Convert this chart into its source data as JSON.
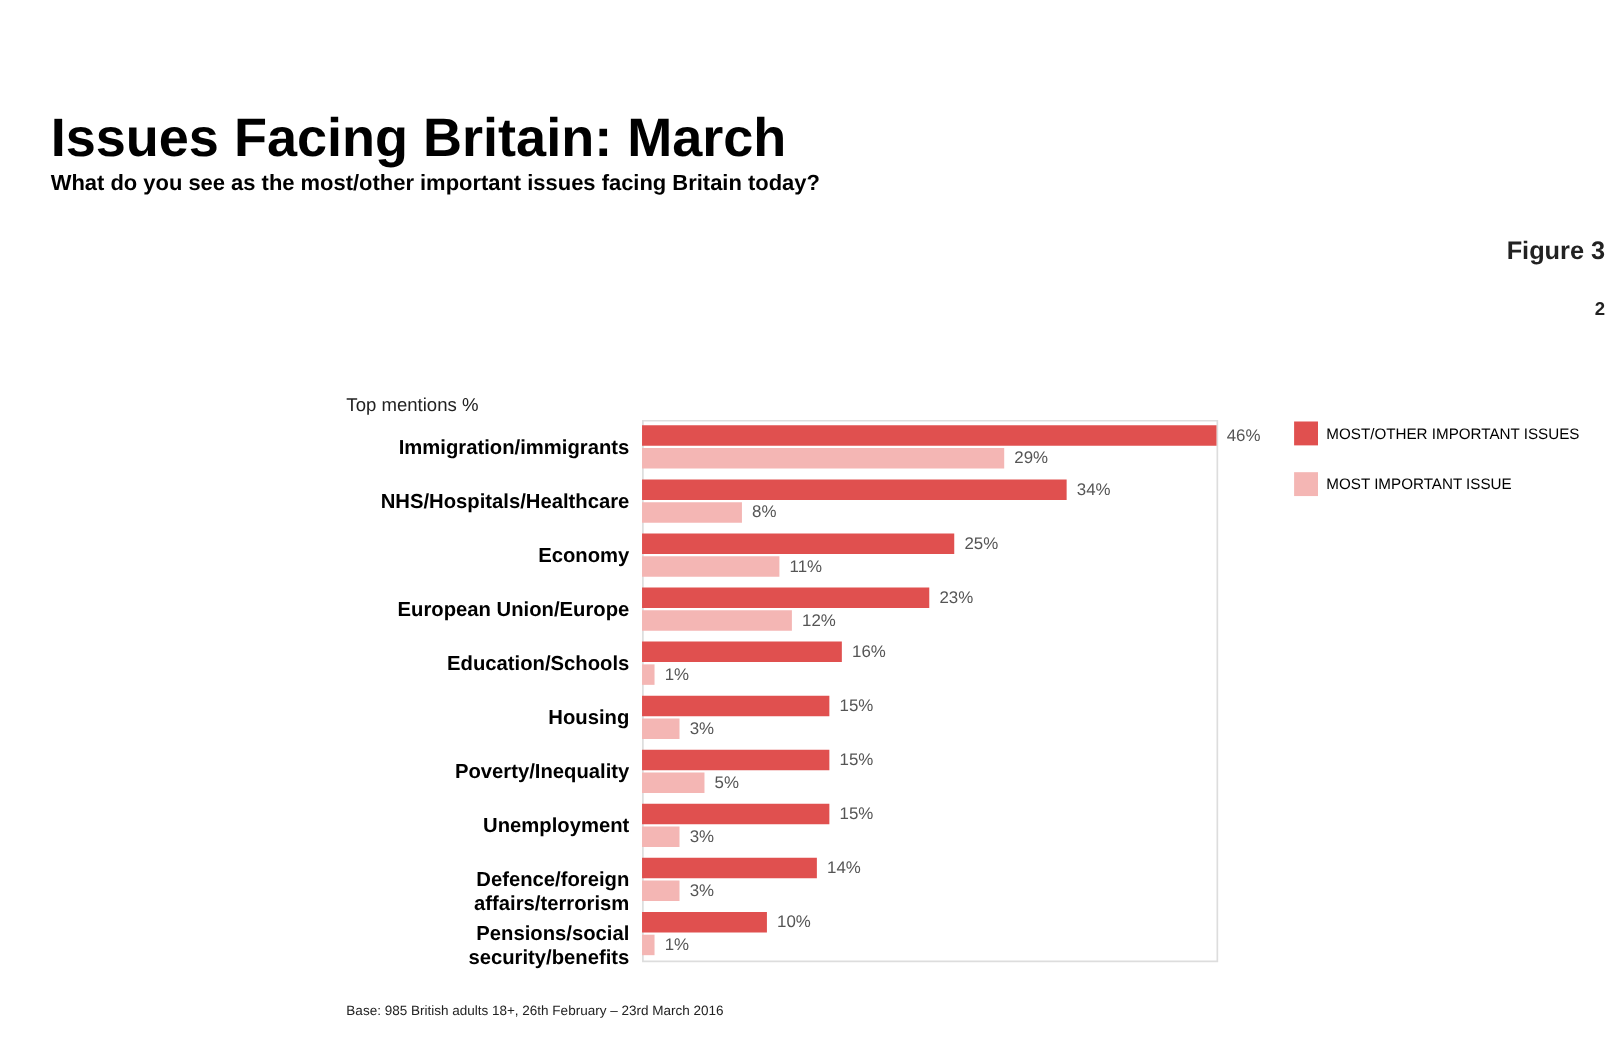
{
  "chart_data": {
    "type": "bar",
    "orientation": "horizontal",
    "title": "Issues Facing Britain: March",
    "subtitle": "What do you see as the most/other important issues facing Britain today?",
    "categories": [
      "Immigration/immigrants",
      "NHS/Hospitals/Healthcare",
      "Economy",
      "European Union/Europe",
      "Education/Schools",
      "Housing",
      "Poverty/Inequality",
      "Unemployment",
      "Defence/foreign\naffairs/terrorism",
      "Pensions/social\nsecurity/benefits"
    ],
    "series": [
      {
        "name": "MOST/OTHER IMPORTANT ISSUES",
        "color": "#e0504f",
        "values": [
          46,
          34,
          25,
          23,
          16,
          15,
          15,
          15,
          14,
          10
        ],
        "value_labels": [
          "46%",
          "34%",
          "25%",
          "23%",
          "16%",
          "15%",
          "15%",
          "15%",
          "14%",
          "10%"
        ]
      },
      {
        "name": "MOST IMPORTANT ISSUE",
        "color": "#f4b6b4",
        "values": [
          29,
          8,
          11,
          12,
          1,
          3,
          5,
          3,
          3,
          1
        ],
        "value_labels": [
          "29%",
          "8%",
          "11%",
          "12%",
          "1%",
          "3%",
          "5%",
          "3%",
          "3%",
          "1%"
        ]
      }
    ],
    "legend": "top right",
    "grid": false,
    "tick_labels": "y",
    "annotations": [
      "Figure 3",
      "2",
      "Top mentions %",
      "Base: 985 British adults 18+, 26th February – 23rd March 2016"
    ]
  }
}
